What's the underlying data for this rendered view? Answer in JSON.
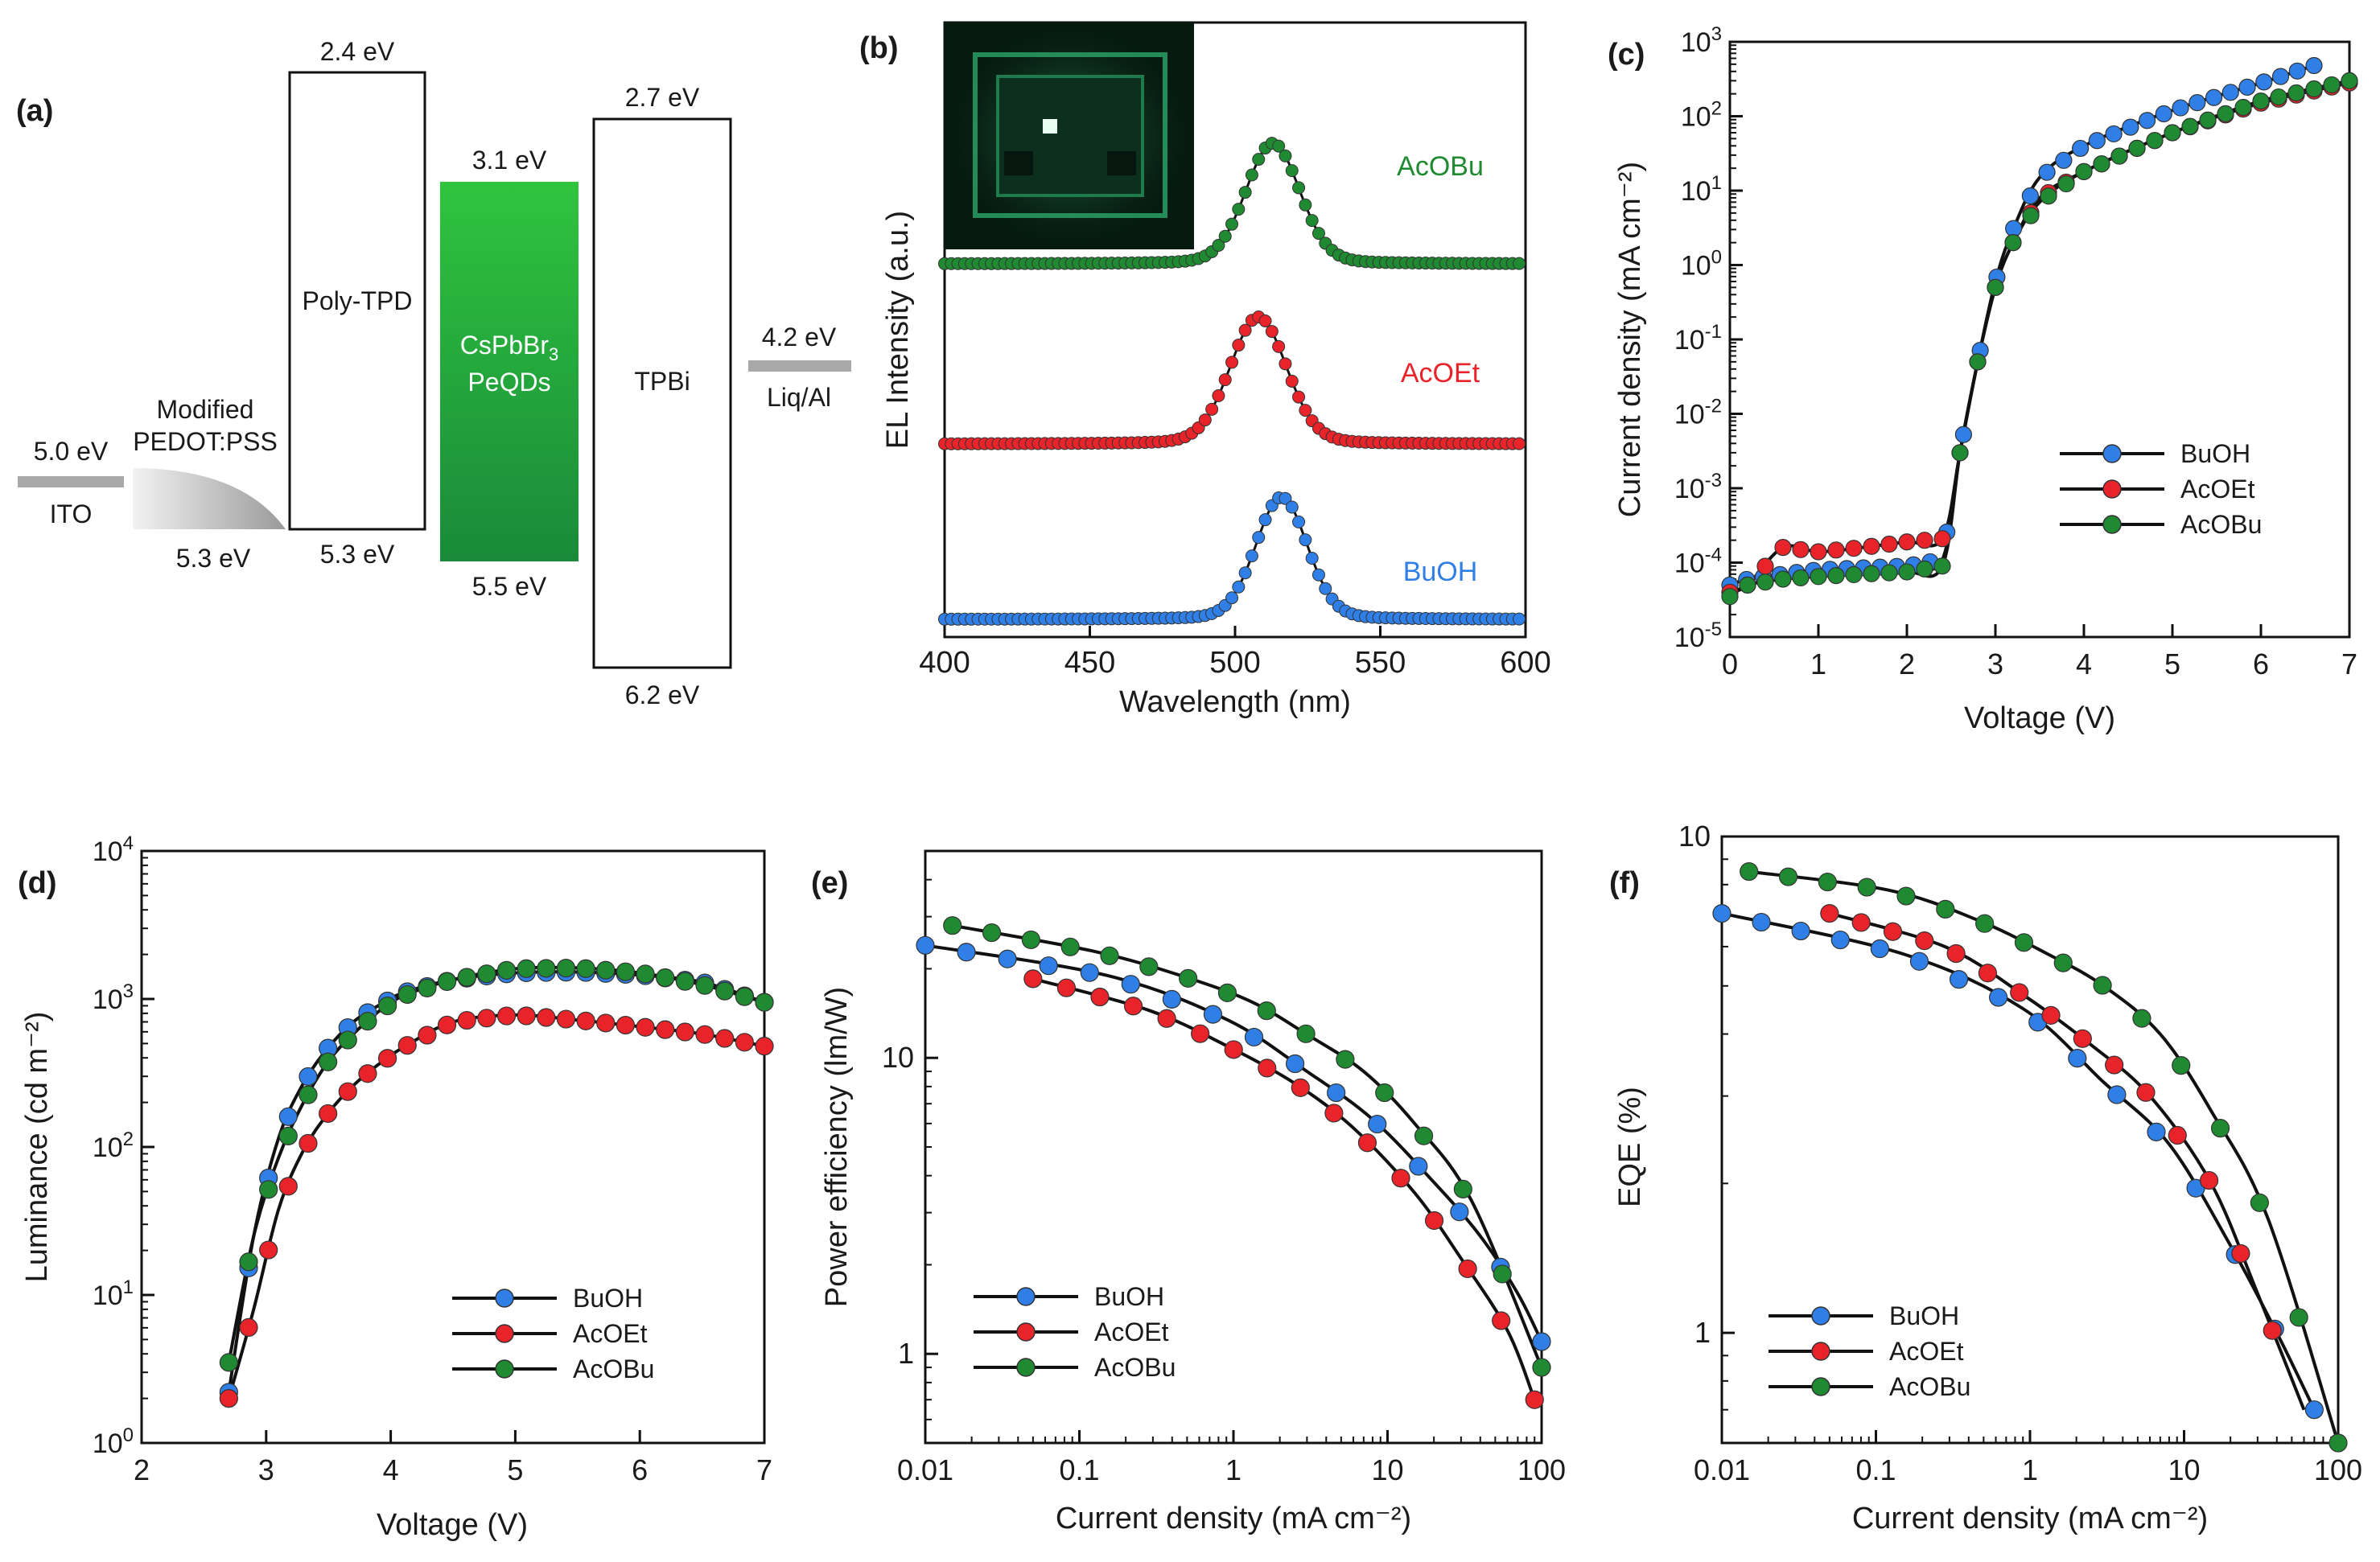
{
  "colors": {
    "BuOH": "#2f7fe6",
    "AcOEt": "#e8242a",
    "AcOBu": "#1f8a32",
    "bar_gray": "#a9a9a9",
    "green_dark": "#1a8a3a",
    "green_light": "#2fc43e"
  },
  "panels": {
    "a": {
      "label": "(a)",
      "layers": {
        "ito": {
          "name": "ITO",
          "top": "5.0 eV"
        },
        "pedot": {
          "name_line1": "Modified",
          "name_line2": "PEDOT:PSS",
          "bottom": "5.3 eV"
        },
        "polytpd": {
          "name": "Poly-TPD",
          "top": "2.4 eV",
          "bottom": "5.3 eV"
        },
        "qd": {
          "name_line1": "CsPbBr",
          "name_sub": "3",
          "name_line2": "PeQDs",
          "top": "3.1 eV",
          "bottom": "5.5 eV"
        },
        "tpbi": {
          "name": "TPBi",
          "top": "2.7 eV",
          "bottom": "6.2 eV"
        },
        "cathode": {
          "name": "Liq/Al",
          "top": "4.2 eV"
        }
      }
    },
    "b": {
      "label": "(b)"
    },
    "c": {
      "label": "(c)"
    },
    "d": {
      "label": "(d)"
    },
    "e": {
      "label": "(e)"
    },
    "f": {
      "label": "(f)"
    }
  },
  "legend_labels": [
    "BuOH",
    "AcOEt",
    "AcOBu"
  ],
  "chart_data": [
    {
      "id": "b",
      "type": "line",
      "title": "",
      "xlabel": "Wavelength (nm)",
      "ylabel": "EL Intensity (a.u.)",
      "xlim": [
        400,
        600
      ],
      "xticks": [
        400,
        450,
        500,
        550,
        600
      ],
      "grid": false,
      "series_labels": [
        "AcOBu",
        "AcOEt",
        "BuOH"
      ],
      "series": [
        {
          "name": "AcOBu",
          "peak_nm": 513,
          "fwhm_nm": 22,
          "offset": 2,
          "color_key": "AcOBu"
        },
        {
          "name": "AcOEt",
          "peak_nm": 508,
          "fwhm_nm": 23,
          "offset": 1,
          "color_key": "AcOEt"
        },
        {
          "name": "BuOH",
          "peak_nm": 516,
          "fwhm_nm": 21,
          "offset": 0,
          "color_key": "BuOH"
        }
      ],
      "inset": "photograph of operating device"
    },
    {
      "id": "c",
      "type": "line",
      "xlabel": "Voltage (V)",
      "ylabel": "Current density (mA cm⁻²)",
      "xlim": [
        0,
        7
      ],
      "xticks": [
        0,
        1,
        2,
        3,
        4,
        5,
        6,
        7
      ],
      "ylog": true,
      "ylim_exp": [
        -5,
        3
      ],
      "legend_position": "right-middle",
      "series": [
        {
          "name": "BuOH",
          "x": [
            0,
            0.2,
            0.6,
            1.0,
            1.5,
            2.0,
            2.4,
            2.6,
            2.8,
            3.0,
            3.2,
            3.5,
            4.0,
            5.0,
            6.0,
            6.6
          ],
          "y": [
            5e-05,
            6e-05,
            7e-05,
            8e-05,
            8.5e-05,
            9e-05,
            0.00011,
            0.003,
            0.05,
            0.6,
            3,
            15,
            40,
            120,
            280,
            480
          ]
        },
        {
          "name": "AcOEt",
          "x": [
            0,
            0.2,
            0.6,
            1.0,
            1.5,
            2.0,
            2.4,
            2.6,
            2.8,
            3.0,
            3.2,
            3.5,
            4.0,
            5.0,
            6.0,
            7.0
          ],
          "y": [
            4e-05,
            5e-05,
            0.00016,
            0.00014,
            0.00016,
            0.00019,
            0.00021,
            0.003,
            0.05,
            0.5,
            2,
            8,
            18,
            60,
            150,
            280
          ]
        },
        {
          "name": "AcOBu",
          "x": [
            0,
            0.2,
            0.6,
            1.0,
            1.5,
            2.0,
            2.4,
            2.6,
            2.8,
            3.0,
            3.2,
            3.5,
            4.0,
            5.0,
            6.0,
            7.0
          ],
          "y": [
            3.5e-05,
            5e-05,
            6e-05,
            6.5e-05,
            7e-05,
            7.5e-05,
            9e-05,
            0.003,
            0.05,
            0.5,
            2,
            7,
            18,
            60,
            160,
            300
          ]
        }
      ]
    },
    {
      "id": "d",
      "type": "line",
      "xlabel": "Voltage (V)",
      "ylabel": "Luminance (cd m⁻²)",
      "xlim": [
        2,
        7
      ],
      "xticks": [
        2,
        3,
        4,
        5,
        6,
        7
      ],
      "ylog": true,
      "ylim_exp": [
        0,
        4
      ],
      "legend_position": "bottom-right",
      "series": [
        {
          "name": "BuOH",
          "x": [
            2.7,
            2.9,
            3.1,
            3.3,
            3.5,
            3.7,
            3.9,
            4.1,
            4.5,
            5.0,
            5.5,
            6.0,
            6.5,
            7.0
          ],
          "y": [
            2.2,
            25,
            115,
            270,
            470,
            700,
            900,
            1100,
            1350,
            1500,
            1520,
            1450,
            1300,
            950
          ]
        },
        {
          "name": "AcOEt",
          "x": [
            2.7,
            2.9,
            3.1,
            3.3,
            3.5,
            3.7,
            3.9,
            4.1,
            4.5,
            5.0,
            5.5,
            6.0,
            6.5,
            7.0
          ],
          "y": [
            2.0,
            8,
            38,
            95,
            170,
            260,
            360,
            470,
            700,
            780,
            720,
            650,
            580,
            480
          ]
        },
        {
          "name": "AcOBu",
          "x": [
            2.7,
            2.9,
            3.1,
            3.3,
            3.5,
            3.7,
            3.9,
            4.1,
            4.5,
            5.0,
            5.5,
            6.0,
            6.5,
            7.0
          ],
          "y": [
            3.5,
            25,
            85,
            200,
            380,
            580,
            820,
            1050,
            1350,
            1600,
            1620,
            1500,
            1250,
            950
          ]
        }
      ]
    },
    {
      "id": "e",
      "type": "line",
      "xlabel": "Current density (mA cm⁻²)",
      "ylabel": "Power efficiency (lm/W)",
      "xlog": true,
      "ylog": true,
      "xlim_exp": [
        -2,
        2
      ],
      "ylim": [
        0.5,
        50
      ],
      "legend_position": "bottom-left",
      "series": [
        {
          "name": "BuOH",
          "x": [
            0.01,
            0.15,
            0.9,
            3,
            8,
            20,
            40,
            70,
            100
          ],
          "y": [
            24,
            19,
            13.5,
            9,
            6.2,
            3.8,
            2.5,
            1.6,
            1.1
          ]
        },
        {
          "name": "AcOEt",
          "x": [
            0.05,
            0.28,
            0.9,
            2.5,
            6,
            15,
            30,
            60,
            90
          ],
          "y": [
            18.5,
            14.5,
            11,
            8.2,
            5.8,
            3.5,
            2.1,
            1.2,
            0.7
          ]
        },
        {
          "name": "AcOBu",
          "x": [
            0.015,
            0.12,
            0.45,
            1.3,
            3,
            7,
            15,
            35,
            100
          ],
          "y": [
            28,
            23,
            19,
            15.5,
            12,
            9,
            6,
            3.3,
            0.9
          ]
        }
      ]
    },
    {
      "id": "f",
      "type": "line",
      "xlabel": "Current density (mA cm⁻²)",
      "ylabel": "EQE (%)",
      "xlog": true,
      "ylog": true,
      "xlim_exp": [
        -2,
        2
      ],
      "ylim": [
        0.6,
        10
      ],
      "legend_position": "bottom-left",
      "series": [
        {
          "name": "BuOH",
          "x": [
            0.01,
            0.15,
            0.9,
            3,
            8,
            20,
            40,
            70
          ],
          "y": [
            7,
            5.8,
            4.5,
            3.2,
            2.4,
            1.5,
            1.0,
            0.7
          ]
        },
        {
          "name": "AcOEt",
          "x": [
            0.05,
            0.28,
            0.9,
            2.5,
            6,
            15,
            30,
            60
          ],
          "y": [
            7,
            6,
            4.8,
            3.8,
            3.0,
            2.0,
            1.2,
            0.7
          ]
        },
        {
          "name": "AcOBu",
          "x": [
            0.015,
            0.12,
            0.45,
            1.3,
            3,
            7,
            15,
            35,
            100
          ],
          "y": [
            8.5,
            7.8,
            6.8,
            5.8,
            5.0,
            4.0,
            2.8,
            1.7,
            0.6
          ]
        }
      ]
    }
  ]
}
